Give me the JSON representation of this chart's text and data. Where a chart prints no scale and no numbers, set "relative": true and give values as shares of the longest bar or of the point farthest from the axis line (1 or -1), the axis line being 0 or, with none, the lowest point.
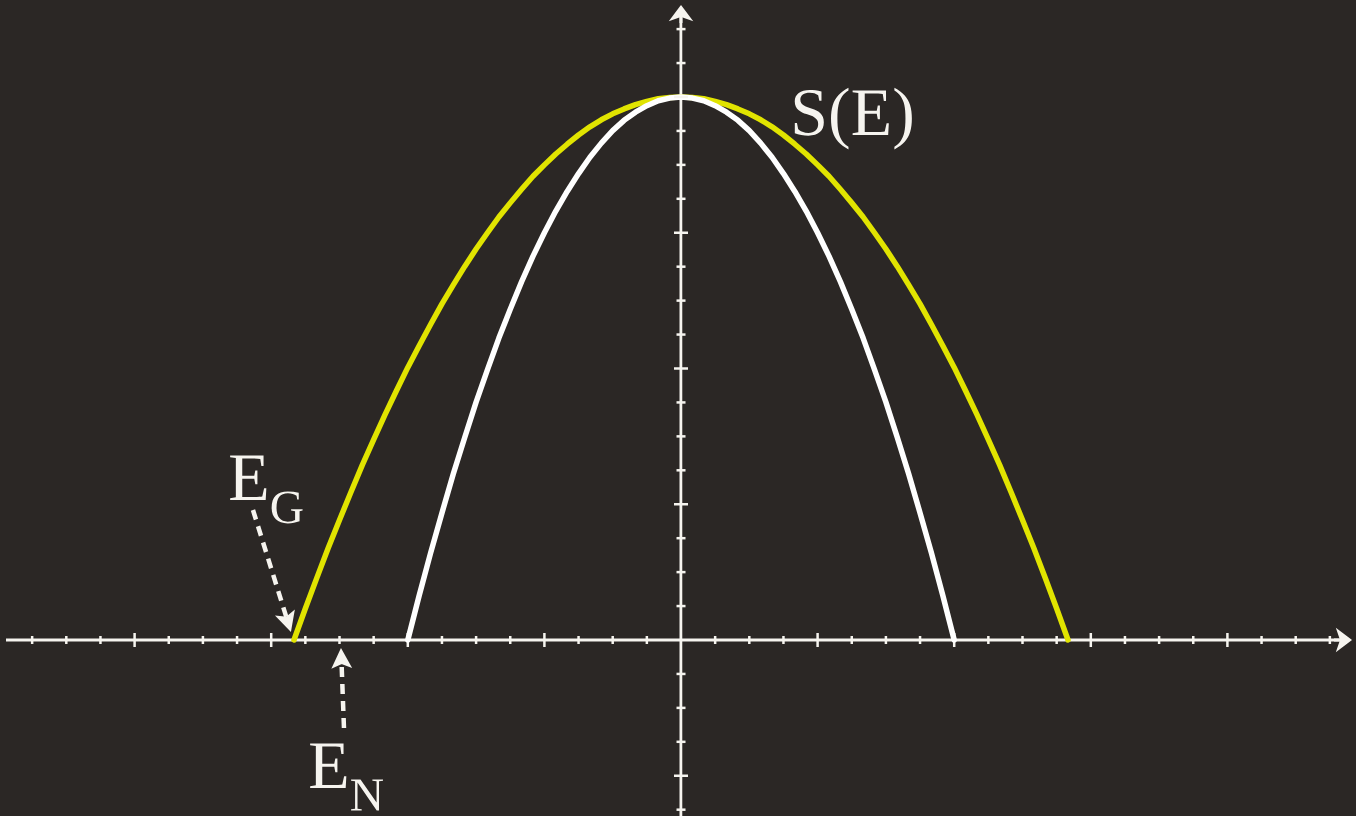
{
  "chart_data": {
    "type": "line",
    "relative": true,
    "categories": [
      null,
      null,
      null,
      null,
      null,
      null,
      null,
      null,
      null,
      null,
      null,
      null,
      null,
      null,
      null,
      null,
      null,
      null,
      null,
      null,
      null,
      null,
      null,
      null,
      null,
      null,
      null,
      null,
      null,
      null,
      null,
      null,
      null,
      null,
      null,
      null,
      null,
      null,
      null,
      null,
      null,
      null,
      null,
      null,
      null,
      null,
      null,
      null,
      null,
      null,
      null,
      null,
      null,
      null,
      null,
      null,
      null,
      null,
      null,
      null,
      null,
      null,
      null,
      null,
      null,
      null,
      null,
      null,
      null,
      null,
      null,
      null,
      null,
      null,
      null,
      null,
      null,
      null,
      null,
      null,
      null,
      null,
      null,
      null,
      null,
      null,
      null,
      null,
      null,
      null,
      null,
      null,
      null,
      null,
      null,
      null,
      null,
      null,
      null,
      null,
      null,
      null,
      null,
      null,
      null,
      null,
      null,
      null,
      null,
      null,
      null,
      null,
      null,
      null,
      null,
      null,
      null,
      null,
      null
    ],
    "series": [
      {
        "name": "S(E)",
        "color": "#e1e400",
        "values": [
          null,
          null,
          null,
          null,
          null,
          null,
          null,
          null,
          null,
          null,
          null,
          null,
          null,
          null,
          null,
          null,
          null,
          null,
          null,
          null,
          null,
          null,
          null,
          null,
          null,
          0,
          0.058,
          0.114,
          0.169,
          0.221,
          0.272,
          0.322,
          0.369,
          0.415,
          0.459,
          0.502,
          0.542,
          0.581,
          0.619,
          0.654,
          0.688,
          0.72,
          0.75,
          0.779,
          0.805,
          0.83,
          0.854,
          0.875,
          0.895,
          0.913,
          0.93,
          0.945,
          0.958,
          0.969,
          0.978,
          0.986,
          0.992,
          0.997,
          0.999,
          1,
          0.999,
          0.997,
          0.992,
          0.986,
          0.978,
          0.969,
          0.958,
          0.945,
          0.93,
          0.913,
          0.895,
          0.875,
          0.854,
          0.83,
          0.805,
          0.779,
          0.75,
          0.72,
          0.688,
          0.654,
          0.619,
          0.581,
          0.542,
          0.502,
          0.459,
          0.415,
          0.369,
          0.322,
          0.272,
          0.221,
          0.169,
          0.114,
          0.058,
          0,
          null,
          null,
          null,
          null,
          null,
          null,
          null,
          null,
          null,
          null,
          null,
          null,
          null,
          null,
          null,
          null,
          null,
          null,
          null,
          null,
          null,
          null,
          null,
          null,
          null
        ]
      },
      {
        "color": "#ffffff",
        "values": [
          null,
          null,
          null,
          null,
          null,
          null,
          null,
          null,
          null,
          null,
          null,
          null,
          null,
          null,
          null,
          null,
          null,
          null,
          null,
          null,
          null,
          null,
          null,
          null,
          null,
          null,
          null,
          null,
          null,
          null,
          null,
          null,
          null,
          null,
          null,
          0,
          0.082,
          0.16,
          0.234,
          0.306,
          0.373,
          0.438,
          0.498,
          0.556,
          0.609,
          0.66,
          0.707,
          0.75,
          0.79,
          0.826,
          0.859,
          0.889,
          0.915,
          0.938,
          0.957,
          0.972,
          0.984,
          0.993,
          0.998,
          1,
          0.998,
          0.993,
          0.984,
          0.972,
          0.957,
          0.938,
          0.915,
          0.889,
          0.859,
          0.826,
          0.79,
          0.75,
          0.707,
          0.66,
          0.609,
          0.556,
          0.498,
          0.438,
          0.373,
          0.306,
          0.234,
          0.16,
          0.082,
          0,
          null,
          null,
          null,
          null,
          null,
          null,
          null,
          null,
          null,
          null,
          null,
          null,
          null,
          null,
          null,
          null,
          null,
          null,
          null,
          null,
          null,
          null,
          null,
          null,
          null,
          null,
          null,
          null,
          null,
          null,
          null,
          null,
          null,
          null,
          null
        ]
      }
    ],
    "annotations": [
      "E$_{G}$",
      "E$_{N}$"
    ]
  }
}
